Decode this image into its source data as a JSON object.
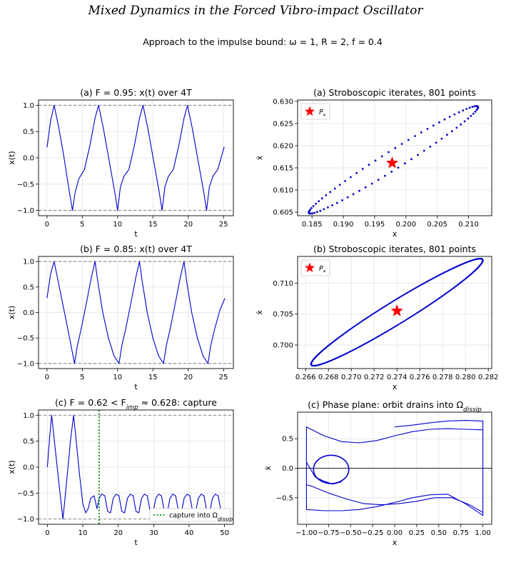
{
  "figure": {
    "title": "Mixed Dynamics in the Forced Vibro-impact Oscillator",
    "subtitle": "Approach to the impulse bound: ω = 1, R = 2, f = 0.4"
  },
  "chart_data": [
    {
      "id": "a-time",
      "type": "line",
      "title": "(a) F = 0.95: x(t) over 4T",
      "xlabel": "t",
      "ylabel": "x(t)",
      "xlim": [
        -1.2,
        26.4
      ],
      "ylim": [
        -1.1,
        1.1
      ],
      "xticks": [
        0,
        5,
        10,
        15,
        20,
        25
      ],
      "yticks": [
        -1.0,
        -0.5,
        0.0,
        0.5,
        1.0
      ],
      "grid": true,
      "hlines": [
        1.0,
        -1.0
      ],
      "series": [
        {
          "color": "#0000cc",
          "x": [
            0,
            0.5,
            1.0,
            1.6,
            2.3,
            3.0,
            3.6,
            4.0,
            4.5,
            5.3,
            6.1,
            6.8,
            7.3,
            8.0,
            8.8,
            9.6,
            10.0,
            10.4,
            10.9,
            11.6,
            12.4,
            13.1,
            13.6,
            14.3,
            15.1,
            15.9,
            16.3,
            16.7,
            17.2,
            17.9,
            18.7,
            19.4,
            19.9,
            20.6,
            21.4,
            22.2,
            22.6,
            23.0,
            23.5,
            24.2,
            25.1
          ],
          "y": [
            0.2,
            0.7,
            1.0,
            0.62,
            0.1,
            -0.5,
            -1.0,
            -0.65,
            -0.4,
            -0.22,
            0.25,
            0.75,
            1.0,
            0.55,
            -0.05,
            -0.65,
            -1.0,
            -0.55,
            -0.35,
            -0.22,
            0.25,
            0.75,
            1.0,
            0.55,
            -0.05,
            -0.65,
            -1.0,
            -0.55,
            -0.35,
            -0.22,
            0.25,
            0.75,
            1.0,
            0.55,
            -0.05,
            -0.65,
            -1.0,
            -0.55,
            -0.35,
            -0.22,
            0.21
          ]
        }
      ]
    },
    {
      "id": "a-strobe",
      "type": "scatter",
      "title": "(a) Stroboscopic iterates, 801 points",
      "xlabel": "x",
      "ylabel": "ẋ",
      "xlim": [
        0.1827,
        0.2137
      ],
      "ylim": [
        0.6042,
        0.6303
      ],
      "xticks": [
        0.185,
        0.19,
        0.195,
        0.2,
        0.205,
        0.21
      ],
      "yticks": [
        0.605,
        0.61,
        0.615,
        0.62,
        0.625,
        0.63
      ],
      "grid": true,
      "legend": {
        "position": "top-left",
        "label": "P*"
      },
      "fixed_point": {
        "x": 0.1978,
        "y": 0.6161
      },
      "ellipse": {
        "extreme_points": [
          [
            0.1845,
            0.6048
          ],
          [
            0.2115,
            0.6288
          ],
          [
            0.1848,
            0.6082
          ],
          [
            0.2112,
            0.6254
          ]
        ],
        "points": 801
      },
      "series": [
        {
          "color": "#0000cc"
        }
      ]
    },
    {
      "id": "b-time",
      "type": "line",
      "title": "(b) F = 0.85: x(t) over 4T",
      "xlabel": "t",
      "ylabel": "x(t)",
      "xlim": [
        -1.2,
        26.4
      ],
      "ylim": [
        -1.1,
        1.1
      ],
      "xticks": [
        0,
        5,
        10,
        15,
        20,
        25
      ],
      "yticks": [
        -1.0,
        -0.5,
        0.0,
        0.5,
        1.0
      ],
      "grid": true,
      "hlines": [
        1.0,
        -1.0
      ],
      "series": [
        {
          "color": "#0000cc",
          "x": [
            0,
            0.5,
            1.0,
            1.6,
            2.4,
            3.2,
            3.9,
            4.3,
            4.8,
            5.6,
            6.3,
            6.8,
            7.2,
            7.9,
            8.7,
            9.5,
            10.2,
            10.6,
            11.1,
            11.9,
            12.6,
            13.1,
            13.5,
            14.2,
            15.0,
            15.8,
            16.5,
            16.9,
            17.4,
            18.2,
            18.9,
            19.4,
            19.8,
            20.5,
            21.3,
            22.1,
            22.8,
            23.2,
            23.7,
            24.5,
            25.2
          ],
          "y": [
            0.28,
            0.75,
            1.0,
            0.6,
            0.05,
            -0.5,
            -1.0,
            -0.65,
            -0.35,
            0.2,
            0.7,
            1.0,
            0.6,
            0.0,
            -0.5,
            -0.85,
            -1.0,
            -0.65,
            -0.35,
            0.2,
            0.7,
            1.0,
            0.6,
            0.0,
            -0.5,
            -0.85,
            -1.0,
            -0.65,
            -0.35,
            0.2,
            0.7,
            1.0,
            0.6,
            0.0,
            -0.5,
            -0.85,
            -1.0,
            -0.65,
            -0.35,
            0.05,
            0.28
          ]
        }
      ]
    },
    {
      "id": "b-strobe",
      "type": "scatter",
      "title": "(b) Stroboscopic iterates, 801 points",
      "xlabel": "x",
      "ylabel": "ẋ",
      "xlim": [
        0.2653,
        0.2823
      ],
      "ylim": [
        0.6962,
        0.7143
      ],
      "xticks": [
        0.266,
        0.268,
        0.27,
        0.272,
        0.274,
        0.276,
        0.278,
        0.28,
        0.282
      ],
      "yticks": [
        0.7,
        0.705,
        0.71
      ],
      "grid": true,
      "legend": {
        "position": "top-left",
        "label": "P*"
      },
      "fixed_point": {
        "x": 0.274,
        "y": 0.7055
      },
      "ellipse": {
        "extreme_points": [
          [
            0.2665,
            0.6968
          ],
          [
            0.2815,
            0.7138
          ],
          [
            0.2665,
            0.6985
          ],
          [
            0.2815,
            0.7115
          ]
        ],
        "points": 801
      },
      "series": [
        {
          "color": "#0000cc"
        }
      ]
    },
    {
      "id": "c-time",
      "type": "line",
      "title": "(c) F = 0.62 < F_imp ≈ 0.628: capture",
      "xlabel": "t",
      "ylabel": "x(t)",
      "xlim": [
        -2.5,
        52.5
      ],
      "ylim": [
        -1.1,
        1.1
      ],
      "xticks": [
        0,
        10,
        20,
        30,
        40,
        50
      ],
      "yticks": [
        -1.0,
        -0.5,
        0.0,
        0.5,
        1.0
      ],
      "grid": true,
      "hlines": [
        1.0,
        -1.0
      ],
      "vline": {
        "x": 14.6,
        "color": "#008800",
        "label": "capture into Ω_dissip"
      },
      "legend": {
        "position": "bottom-right"
      },
      "series": [
        {
          "color": "#0000cc",
          "x": [
            0,
            0.6,
            1.2,
            2.3,
            3.4,
            4.4,
            5.4,
            6.5,
            7.4,
            8.0,
            9.0,
            10.0,
            10.8,
            11.5,
            12.2,
            13.2,
            14.0,
            14.6,
            15.3,
            16.2,
            17.0,
            17.8,
            18.6,
            19.4,
            20.2,
            21.0,
            21.8,
            22.6,
            23.4,
            24.2,
            25.0,
            25.8,
            26.6,
            27.4,
            28.2,
            29.0,
            29.8,
            30.6,
            31.4,
            32.2,
            33.0,
            33.8,
            34.6,
            35.4,
            36.2,
            37.0,
            37.8,
            38.6,
            39.4,
            40.2,
            41.0,
            41.8,
            42.6,
            43.4,
            44.2,
            45.0,
            45.8,
            46.6,
            47.4,
            48.2,
            49.0,
            49.8
          ],
          "y": [
            0.0,
            0.55,
            1.0,
            0.3,
            -0.4,
            -1.0,
            -0.3,
            0.5,
            1.0,
            0.6,
            -0.1,
            -0.7,
            -0.88,
            -0.8,
            -0.6,
            -0.55,
            -0.8,
            -0.6,
            -0.52,
            -0.55,
            -0.85,
            -0.88,
            -0.6,
            -0.52,
            -0.55,
            -0.85,
            -0.88,
            -0.6,
            -0.52,
            -0.55,
            -0.85,
            -0.88,
            -0.6,
            -0.52,
            -0.55,
            -0.85,
            -0.88,
            -0.6,
            -0.52,
            -0.55,
            -0.85,
            -0.88,
            -0.6,
            -0.52,
            -0.55,
            -0.85,
            -0.88,
            -0.6,
            -0.52,
            -0.55,
            -0.85,
            -0.88,
            -0.6,
            -0.52,
            -0.55,
            -0.85,
            -0.88,
            -0.6,
            -0.52,
            -0.55,
            -0.85,
            -0.88
          ]
        }
      ]
    },
    {
      "id": "c-phase",
      "type": "line",
      "title": "(c) Phase plane: orbit drains into Ω_dissip",
      "xlabel": "x",
      "ylabel": "ẋ",
      "xlim": [
        -1.1,
        1.1
      ],
      "ylim": [
        -0.95,
        0.95
      ],
      "xticks": [
        -1.0,
        -0.75,
        -0.5,
        -0.25,
        0.0,
        0.25,
        0.5,
        0.75,
        1.0
      ],
      "yticks": [
        -0.5,
        0.0,
        0.5
      ],
      "grid": true,
      "hlines": [
        0.0
      ],
      "series": [
        {
          "name": "",
          "color": "#0000cc",
          "x": [
            0.0,
            0.2,
            0.4,
            0.6,
            0.8,
            1.0,
            1.0,
            0.85,
            0.65,
            0.45,
            0.25,
            0.05,
            -0.15,
            -0.35,
            -0.55,
            -0.75,
            -0.95,
            -1.0,
            -1.0,
            -0.8,
            -0.6,
            -0.4,
            -0.2,
            0.0,
            0.2,
            0.4,
            0.6,
            0.8,
            1.0,
            1.0,
            0.8,
            0.6,
            0.4,
            0.2,
            0.0,
            -0.2,
            -0.4,
            -0.6,
            -0.8,
            -1.0,
            -1.0,
            -0.9,
            -0.8,
            -0.7,
            -0.6
          ],
          "y": [
            0.7,
            0.73,
            0.77,
            0.8,
            0.81,
            0.8,
            -0.75,
            -0.62,
            -0.5,
            -0.5,
            -0.56,
            -0.6,
            -0.62,
            -0.6,
            -0.52,
            -0.42,
            -0.3,
            -0.28,
            0.7,
            0.55,
            0.45,
            0.43,
            0.47,
            0.55,
            0.62,
            0.66,
            0.67,
            0.66,
            0.65,
            -0.8,
            -0.6,
            -0.44,
            -0.45,
            -0.5,
            -0.58,
            -0.65,
            -0.7,
            -0.72,
            -0.72,
            -0.7,
            0.1,
            -0.15,
            -0.22,
            -0.27,
            -0.23
          ]
        },
        {
          "name": "",
          "color": "#0000cc",
          "loop": {
            "cx": -0.72,
            "cy": -0.02,
            "rx": 0.2,
            "ry": 0.24
          }
        }
      ]
    }
  ]
}
